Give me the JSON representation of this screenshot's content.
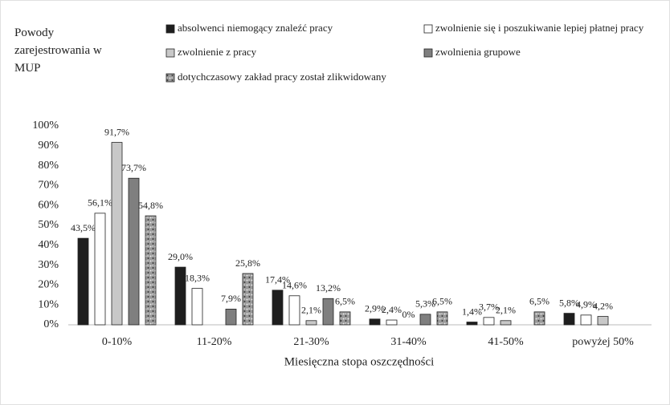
{
  "chart_data": {
    "type": "bar",
    "legend_title": "Powody zarejestrowania w MUP",
    "x_label": "Miesięczna stopa oszczędności",
    "categories": [
      "0-10%",
      "11-20%",
      "21-30%",
      "31-40%",
      "41-50%",
      "powyżej 50%"
    ],
    "series": [
      {
        "name": "absolwenci niemogący znaleźć pracy",
        "color": "#1e1e1e",
        "values": [
          43.5,
          29.0,
          17.4,
          2.9,
          1.4,
          5.8
        ],
        "value_labels": [
          "43,5%",
          "29,0%",
          "17,4%",
          "2,9%",
          "1,4%",
          "5,8%"
        ]
      },
      {
        "name": "zwolnienie się i poszukiwanie lepiej płatnej pracy",
        "color": "#ffffff",
        "values": [
          56.1,
          18.3,
          14.6,
          2.4,
          3.7,
          4.9
        ],
        "value_labels": [
          "56,1%",
          "18,3%",
          "14,6%",
          "2,4%",
          "3,7%",
          "4,9%"
        ]
      },
      {
        "name": "zwolnienie z pracy",
        "color": "#c8c8c8",
        "values": [
          91.7,
          null,
          2.1,
          0,
          2.1,
          4.2
        ],
        "value_labels": [
          "91,7%",
          null,
          "2,1%",
          "0%",
          "2,1%",
          "4,2%"
        ]
      },
      {
        "name": "zwolnienia grupowe",
        "color": "#7f7f7f",
        "values": [
          73.7,
          7.9,
          13.2,
          5.3,
          null,
          null
        ],
        "value_labels": [
          "73,7%",
          "7,9%",
          "13,2%",
          "5,3%",
          null,
          null
        ]
      },
      {
        "name": "dotychczasowy zakład pracy został zlikwidowany",
        "color": "#9a9a9a",
        "texture": true,
        "values": [
          54.8,
          25.8,
          6.5,
          6.5,
          6.5,
          null
        ],
        "value_labels": [
          "54,8%",
          "25,8%",
          "6,5%",
          "6,5%",
          "6,5%",
          null
        ]
      }
    ],
    "ylim": [
      0,
      100
    ],
    "yticks": [
      {
        "value": 0,
        "label": "0%"
      },
      {
        "value": 10,
        "label": "10%"
      },
      {
        "value": 20,
        "label": "20%"
      },
      {
        "value": 30,
        "label": "30%"
      },
      {
        "value": 40,
        "label": "40%"
      },
      {
        "value": 50,
        "label": "50%"
      },
      {
        "value": 60,
        "label": "60%"
      },
      {
        "value": 70,
        "label": "70%"
      },
      {
        "value": 80,
        "label": "80%"
      },
      {
        "value": 90,
        "label": "90%"
      },
      {
        "value": 100,
        "label": "100%"
      }
    ],
    "grid": false
  }
}
